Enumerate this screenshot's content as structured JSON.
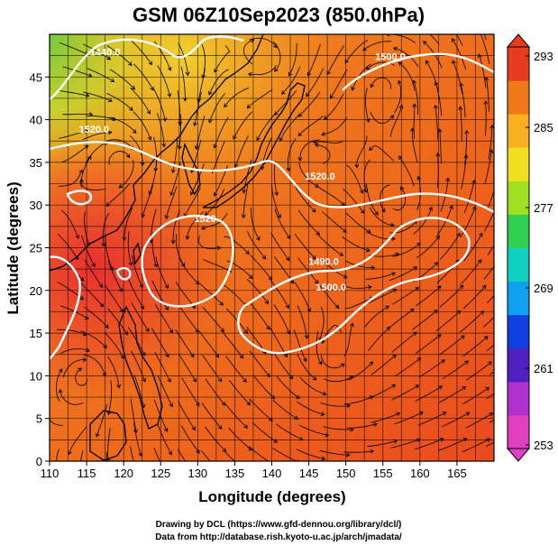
{
  "title": "GSM 06Z10Sep2023 (850.0hPa)",
  "xlabel": "Longitude (degrees)",
  "ylabel": "Latitude  (degrees)",
  "credits": [
    "Drawing by DCL (https://www.gfd-dennou.org/library/dcl/)",
    "Data from http://database.rish.kyoto-u.ac.jp/arch/jmadata/"
  ],
  "map": {
    "lon_range": [
      110,
      170
    ],
    "lat_range": [
      0,
      50
    ],
    "lon_ticks": [
      "110",
      "115",
      "120",
      "125",
      "130",
      "135",
      "140",
      "145",
      "150",
      "155",
      "160",
      "165"
    ],
    "lat_ticks": [
      "0",
      "5",
      "10",
      "15",
      "20",
      "25",
      "30",
      "35",
      "40",
      "45"
    ],
    "grid_spacing_deg": 2.5,
    "contour_labels": [
      {
        "text": "1440.0",
        "lon": 117.5,
        "lat": 47.5
      },
      {
        "text": "1500.0",
        "lon": 156,
        "lat": 47
      },
      {
        "text": "1520.0",
        "lon": 146.5,
        "lat": 33
      },
      {
        "text": "1520.0",
        "lon": 116,
        "lat": 38.5
      },
      {
        "text": "1520",
        "lon": 131,
        "lat": 28
      },
      {
        "text": "1490.0",
        "lon": 147,
        "lat": 23
      },
      {
        "text": "1500.0",
        "lon": 148,
        "lat": 20
      }
    ]
  },
  "colorbar": {
    "ticks": [
      "293",
      "285",
      "277",
      "269",
      "261",
      "253"
    ],
    "min": 253,
    "max": 293,
    "colors": [
      "#e040c0",
      "#b030d0",
      "#5020c0",
      "#1040e0",
      "#10a0f0",
      "#10d0c0",
      "#30d050",
      "#a0e020",
      "#f0e020",
      "#f8b020",
      "#f07818",
      "#e83c20"
    ]
  }
}
